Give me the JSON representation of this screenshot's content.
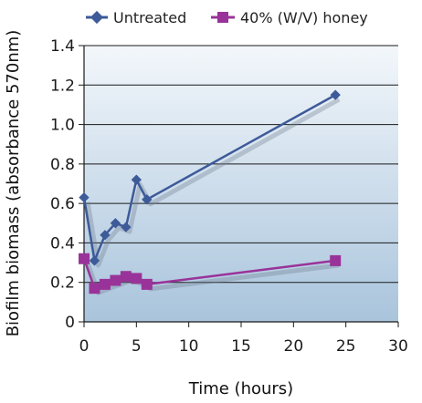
{
  "chart_data": {
    "type": "line",
    "title": "",
    "xlabel": "Time (hours)",
    "ylabel": "Biofilm biomass (absorbance 570nm)",
    "xlim": [
      0,
      30
    ],
    "ylim": [
      0,
      1.4
    ],
    "xticks": [
      0,
      5,
      10,
      15,
      20,
      25,
      30
    ],
    "xtick_labels": [
      "0",
      "5",
      "10",
      "15",
      "20",
      "25",
      "30"
    ],
    "yticks": [
      0,
      0.2,
      0.4,
      0.6,
      0.8,
      1.0,
      1.2,
      1.4
    ],
    "ytick_labels": [
      "0",
      "0.2",
      "0.4",
      "0.6",
      "0.8",
      "1.0",
      "1.2",
      "1.4"
    ],
    "grid": "horizontal",
    "legend_position": "top",
    "series": [
      {
        "name": "Untreated",
        "color": "#3d5a99",
        "marker": "diamond",
        "x": [
          0,
          1,
          2,
          3,
          4,
          5,
          6,
          24
        ],
        "y": [
          0.63,
          0.31,
          0.44,
          0.5,
          0.48,
          0.72,
          0.62,
          1.15
        ]
      },
      {
        "name": "40% (W/V) honey",
        "color": "#993399",
        "marker": "square",
        "x": [
          0,
          1,
          2,
          3,
          4,
          5,
          6,
          24
        ],
        "y": [
          0.32,
          0.17,
          0.19,
          0.21,
          0.23,
          0.22,
          0.19,
          0.31
        ]
      }
    ]
  }
}
